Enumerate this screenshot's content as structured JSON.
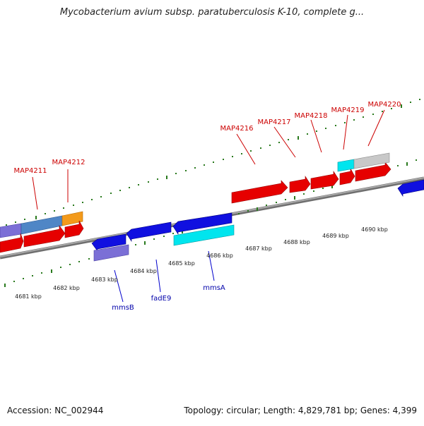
{
  "header": {
    "title": "Mycobacterium avium subsp. paratuberculosis K-10, complete g..."
  },
  "footer": {
    "accession": "Accession: NC_002944",
    "summary": "Topology: circular; Length: 4,829,781 bp; Genes: 4,399"
  },
  "colors": {
    "forward_gene": "#ff0000",
    "reverse_gene": "#0000ff",
    "forward_label": "#cc0000",
    "reverse_label": "#0000aa",
    "tick": "#2a7a1e",
    "backbone": "#8c8c8c",
    "cyan_feature": "#00e5ee",
    "steel_feature": "#4f86c6",
    "orange_feature": "#f39a1b",
    "purple_feature": "#7b6fd6",
    "gray_feature": "#c8c8c8"
  },
  "forward_labels": [
    "MAP4211",
    "MAP4212",
    "MAP4216",
    "MAP4217",
    "MAP4218",
    "MAP4219",
    "MAP4220"
  ],
  "reverse_labels": [
    "mmsB",
    "fadE9",
    "mmsA"
  ],
  "kbp_labels": [
    "4681 kbp",
    "4682 kbp",
    "4683 kbp",
    "4684 kbp",
    "4685 kbp",
    "4686 kbp",
    "4687 kbp",
    "4688 kbp",
    "4689 kbp",
    "4690 kbp"
  ]
}
